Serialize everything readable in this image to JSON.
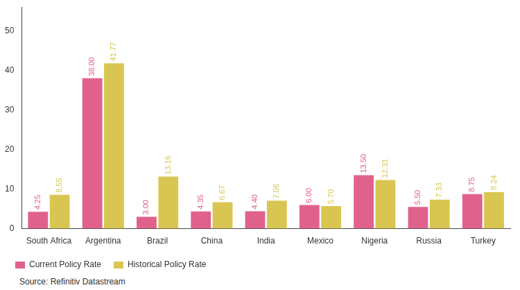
{
  "chart_data": {
    "type": "bar",
    "categories": [
      "South Africa",
      "Argentina",
      "Brazil",
      "China",
      "India",
      "Mexico",
      "Nigeria",
      "Russia",
      "Turkey"
    ],
    "series": [
      {
        "name": "Current Policy Rate",
        "color": "#e0628c",
        "values": [
          4.25,
          38.0,
          3.0,
          4.35,
          4.4,
          6.0,
          13.5,
          5.5,
          8.75
        ],
        "value_labels": [
          "4.25",
          "38.00",
          "3.00",
          "4.35",
          "4.40",
          "6.00",
          "13.50",
          "5.50",
          "8.75"
        ]
      },
      {
        "name": "Historical Policy Rate",
        "color": "#d9c652",
        "values": [
          8.55,
          41.77,
          13.16,
          6.67,
          7.06,
          5.7,
          12.31,
          7.33,
          9.24
        ],
        "value_labels": [
          "8.55",
          "41.77",
          "13.16",
          "6.67",
          "7.06",
          "5.70",
          "12.31",
          "7.33",
          "9.24"
        ]
      }
    ],
    "ylim": [
      0,
      56
    ],
    "yticks": [
      0,
      10,
      20,
      30,
      40,
      50
    ],
    "grid": false,
    "legend": "bottom",
    "data_labels": true,
    "annotations": [
      "Source: Refinitiv Datastream"
    ]
  }
}
